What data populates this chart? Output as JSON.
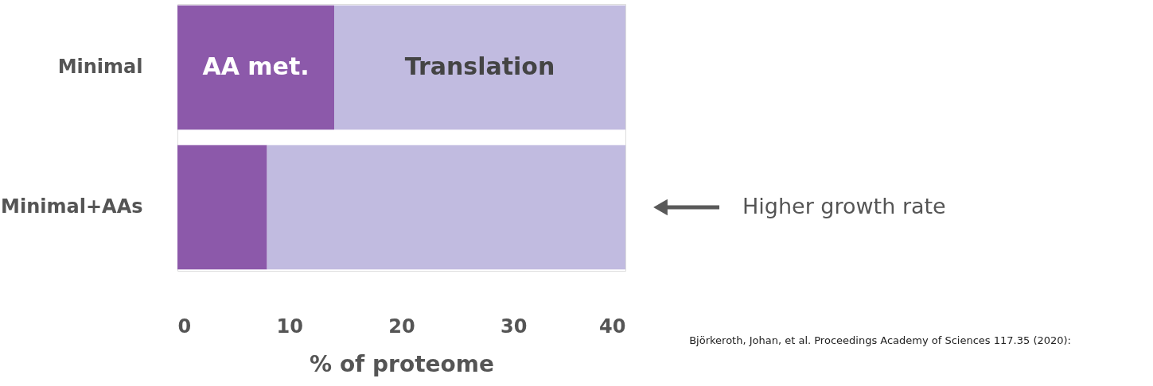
{
  "chart_data": {
    "type": "bar",
    "orientation": "horizontal",
    "stacked": true,
    "categories": [
      "Minimal",
      "Minimal+AAs"
    ],
    "series": [
      {
        "name": "AA met.",
        "color": "#8c59aa",
        "values": [
          14,
          8
        ]
      },
      {
        "name": "Translation",
        "color": "#c1bbe0",
        "values": [
          26,
          32
        ]
      }
    ],
    "xlabel": "% of proteome",
    "xlim": [
      0,
      40
    ],
    "xticks": [
      0,
      10,
      20,
      30,
      40
    ],
    "grid": false,
    "legend": false,
    "annotations": [
      "Higher growth rate",
      "Björkeroth, Johan, et al. Proceedings Academy of Sciences 117.35 (2020):"
    ]
  }
}
